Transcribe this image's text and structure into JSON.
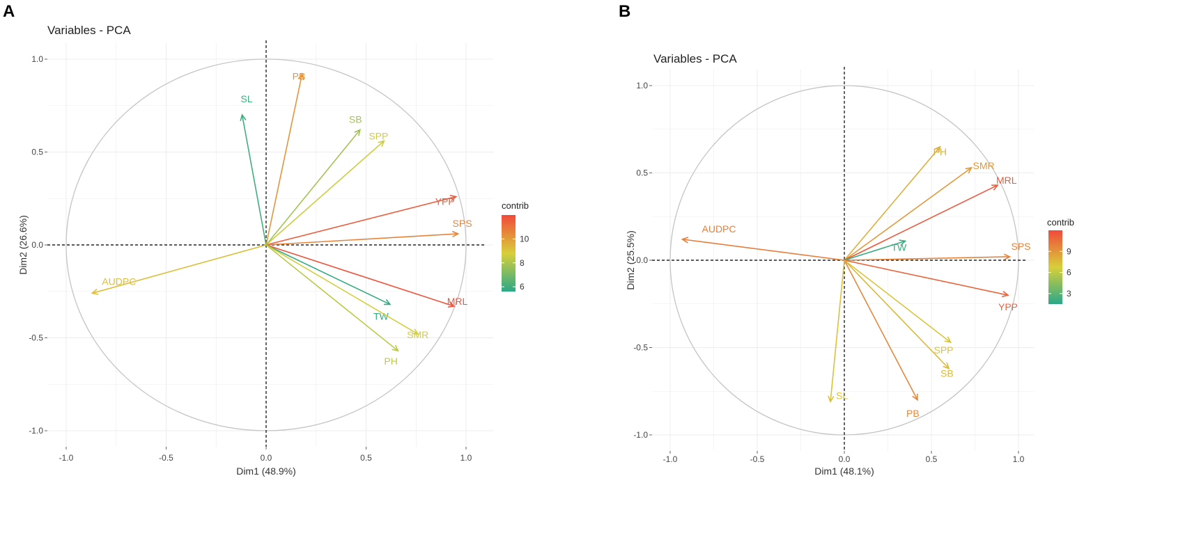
{
  "colors": {
    "low": "#2aa889",
    "mid": "#d8cf3a",
    "high": "#f04a3a",
    "grid": "#ececec",
    "circle": "#c4c4c4"
  },
  "chart_data": [
    {
      "type": "scatter",
      "panel": "A",
      "title": "Variables - PCA",
      "xlabel": "Dim1 (48.9%)",
      "ylabel": "Dim2 (26.6%)",
      "xlim": [
        -1.0,
        1.0
      ],
      "ylim": [
        -1.0,
        1.0
      ],
      "xticks": [
        "-1.0",
        "-0.5",
        "0.0",
        "0.5",
        "1.0"
      ],
      "yticks": [
        "-1.0",
        "-0.5",
        "0.0",
        "0.5",
        "1.0"
      ],
      "legend_title": "contrib",
      "legend_ticks": [
        "10",
        "8",
        "6"
      ],
      "legend_tick_values": [
        10,
        8,
        6
      ],
      "contrib_range": [
        5.6,
        12.0
      ],
      "variables": [
        {
          "name": "PB",
          "x": 0.18,
          "y": 0.92,
          "contrib": 10.2
        },
        {
          "name": "SL",
          "x": -0.12,
          "y": 0.7,
          "contrib": 6.0
        },
        {
          "name": "SB",
          "x": 0.47,
          "y": 0.62,
          "contrib": 7.8
        },
        {
          "name": "SPP",
          "x": 0.59,
          "y": 0.56,
          "contrib": 8.6
        },
        {
          "name": "YPP",
          "x": 0.95,
          "y": 0.26,
          "contrib": 11.6
        },
        {
          "name": "SPS",
          "x": 0.96,
          "y": 0.06,
          "contrib": 10.6
        },
        {
          "name": "AUDPC",
          "x": -0.87,
          "y": -0.26,
          "contrib": 9.2
        },
        {
          "name": "MRL",
          "x": 0.94,
          "y": -0.33,
          "contrib": 11.8
        },
        {
          "name": "TW",
          "x": 0.62,
          "y": -0.32,
          "contrib": 5.8
        },
        {
          "name": "SMR",
          "x": 0.76,
          "y": -0.48,
          "contrib": 8.7
        },
        {
          "name": "PH",
          "x": 0.66,
          "y": -0.57,
          "contrib": 8.3
        }
      ]
    },
    {
      "type": "scatter",
      "panel": "B",
      "title": "Variables - PCA",
      "xlabel": "Dim1 (48.1%)",
      "ylabel": "Dim2 (25.5%)",
      "xlim": [
        -1.0,
        1.0
      ],
      "ylim": [
        -1.0,
        1.0
      ],
      "xticks": [
        "-1.0",
        "-0.5",
        "0.0",
        "0.5",
        "1.0"
      ],
      "yticks": [
        "-1.0",
        "-0.5",
        "0.0",
        "0.5",
        "1.0"
      ],
      "legend_title": "contrib",
      "legend_ticks": [
        "9",
        "6",
        "3"
      ],
      "legend_tick_values": [
        9,
        6,
        3
      ],
      "contrib_range": [
        1.5,
        12.0
      ],
      "variables": [
        {
          "name": "PH",
          "x": 0.55,
          "y": 0.65,
          "contrib": 8.0
        },
        {
          "name": "SMR",
          "x": 0.73,
          "y": 0.53,
          "contrib": 8.9
        },
        {
          "name": "MRL",
          "x": 0.88,
          "y": 0.43,
          "contrib": 11.4
        },
        {
          "name": "AUDPC",
          "x": -0.93,
          "y": 0.12,
          "contrib": 10.0
        },
        {
          "name": "TW",
          "x": 0.35,
          "y": 0.11,
          "contrib": 2.0
        },
        {
          "name": "SPS",
          "x": 0.95,
          "y": 0.02,
          "contrib": 9.8
        },
        {
          "name": "YPP",
          "x": 0.94,
          "y": -0.2,
          "contrib": 11.0
        },
        {
          "name": "SPP",
          "x": 0.61,
          "y": -0.47,
          "contrib": 7.2
        },
        {
          "name": "SB",
          "x": 0.6,
          "y": -0.62,
          "contrib": 7.6
        },
        {
          "name": "PB",
          "x": 0.42,
          "y": -0.8,
          "contrib": 9.6
        },
        {
          "name": "SL",
          "x": -0.08,
          "y": -0.81,
          "contrib": 7.3
        }
      ]
    }
  ]
}
